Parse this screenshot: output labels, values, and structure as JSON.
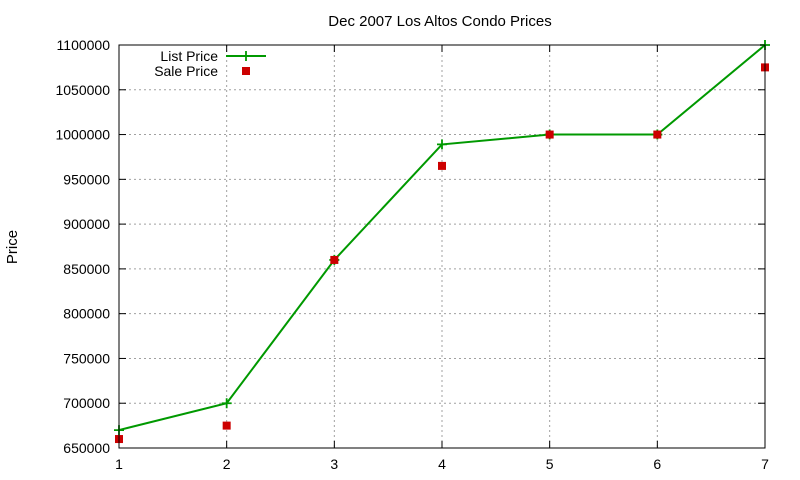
{
  "chart_data": {
    "type": "line",
    "title": "Dec 2007 Los Altos Condo Prices",
    "xlabel": "",
    "ylabel": "Price",
    "x": [
      1,
      2,
      3,
      4,
      5,
      6,
      7
    ],
    "xlim": [
      1,
      7
    ],
    "ylim": [
      650000,
      1100000
    ],
    "xticks": [
      1,
      2,
      3,
      4,
      5,
      6,
      7
    ],
    "yticks": [
      650000,
      700000,
      750000,
      800000,
      850000,
      900000,
      950000,
      1000000,
      1050000,
      1100000
    ],
    "grid": true,
    "legend_position": "top-left",
    "series": [
      {
        "name": "List Price",
        "style": "lines-points",
        "marker": "plus",
        "color": "#009900",
        "values": [
          670000,
          700000,
          860000,
          989000,
          1000000,
          1000000,
          1100000
        ]
      },
      {
        "name": "Sale Price",
        "style": "points",
        "marker": "square",
        "color": "#cc0000",
        "values": [
          660000,
          675000,
          860000,
          965000,
          1000000,
          1000000,
          1075000
        ]
      }
    ]
  }
}
